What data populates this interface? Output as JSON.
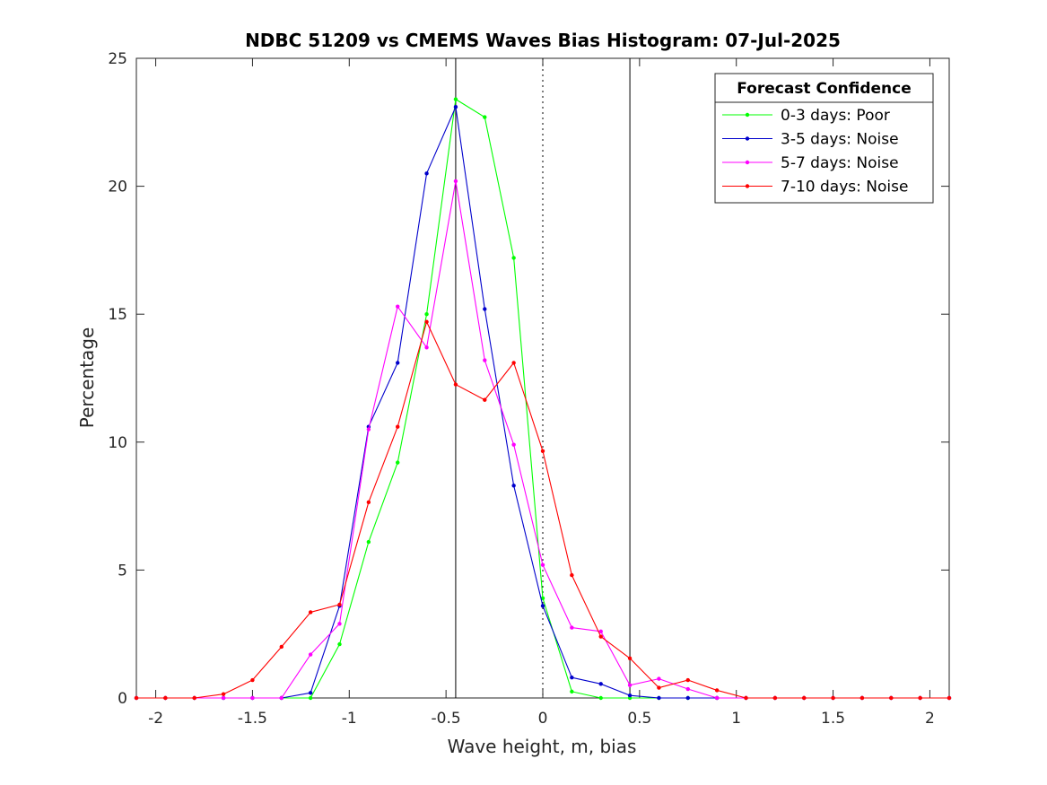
{
  "chart_data": {
    "type": "line",
    "title": "NDBC 51209 vs CMEMS Waves Bias Histogram: 07-Jul-2025",
    "xlabel": "Wave height, m, bias",
    "ylabel": "Percentage",
    "xlim": [
      -2.1,
      2.1
    ],
    "ylim": [
      0,
      25
    ],
    "xticks": [
      -2,
      -1.5,
      -1,
      -0.5,
      0,
      0.5,
      1,
      1.5,
      2
    ],
    "xtick_labels": [
      "-2",
      "-1.5",
      "-1",
      "-0.5",
      "0",
      "0.5",
      "1",
      "1.5",
      "2"
    ],
    "yticks": [
      0,
      5,
      10,
      15,
      20,
      25
    ],
    "ytick_labels": [
      "0",
      "5",
      "10",
      "15",
      "20",
      "25"
    ],
    "grid": false,
    "legend": {
      "title": "Forecast Confidence",
      "placement": "top-right"
    },
    "reference_lines": [
      {
        "x": -0.45,
        "style": "solid",
        "color": "#000000"
      },
      {
        "x": 0,
        "style": "dotted",
        "color": "#000000"
      },
      {
        "x": 0.45,
        "style": "solid",
        "color": "#000000"
      }
    ],
    "x": [
      -2.1,
      -1.95,
      -1.8,
      -1.65,
      -1.5,
      -1.35,
      -1.2,
      -1.05,
      -0.9,
      -0.75,
      -0.6,
      -0.45,
      -0.3,
      -0.15,
      0,
      0.15,
      0.3,
      0.45,
      0.6,
      0.75,
      0.9,
      1.05,
      1.2,
      1.35,
      1.5,
      1.65,
      1.8,
      1.95,
      2.1
    ],
    "series": [
      {
        "name": "0-3 days: Poor",
        "color": "#00ff00",
        "values": [
          0,
          0,
          0,
          0,
          0,
          0,
          0,
          2.1,
          6.1,
          9.2,
          15.0,
          23.4,
          22.7,
          17.2,
          3.9,
          0.25,
          0,
          0,
          0,
          0,
          0,
          0,
          0,
          0,
          0,
          0,
          0,
          0,
          0
        ]
      },
      {
        "name": "3-5 days: Noise",
        "color": "#0000cc",
        "values": [
          0,
          0,
          0,
          0,
          0,
          0,
          0.2,
          3.6,
          10.6,
          13.1,
          20.5,
          23.1,
          15.2,
          8.3,
          3.6,
          0.8,
          0.55,
          0.1,
          0,
          0,
          0,
          0,
          0,
          0,
          0,
          0,
          0,
          0,
          0
        ]
      },
      {
        "name": "5-7 days: Noise",
        "color": "#ff00ff",
        "values": [
          0,
          0,
          0,
          0,
          0,
          0,
          1.7,
          2.9,
          10.5,
          15.3,
          13.7,
          20.2,
          13.2,
          9.9,
          5.2,
          2.75,
          2.6,
          0.5,
          0.75,
          0.35,
          0,
          0,
          0,
          0,
          0,
          0,
          0,
          0,
          0
        ]
      },
      {
        "name": "7-10 days: Noise",
        "color": "#ff0000",
        "values": [
          0,
          0,
          0,
          0.15,
          0.7,
          2.0,
          3.35,
          3.65,
          7.65,
          10.6,
          14.7,
          12.25,
          11.65,
          13.1,
          9.65,
          4.8,
          2.4,
          1.55,
          0.4,
          0.7,
          0.3,
          0,
          0,
          0,
          0,
          0,
          0,
          0,
          0
        ]
      }
    ]
  }
}
